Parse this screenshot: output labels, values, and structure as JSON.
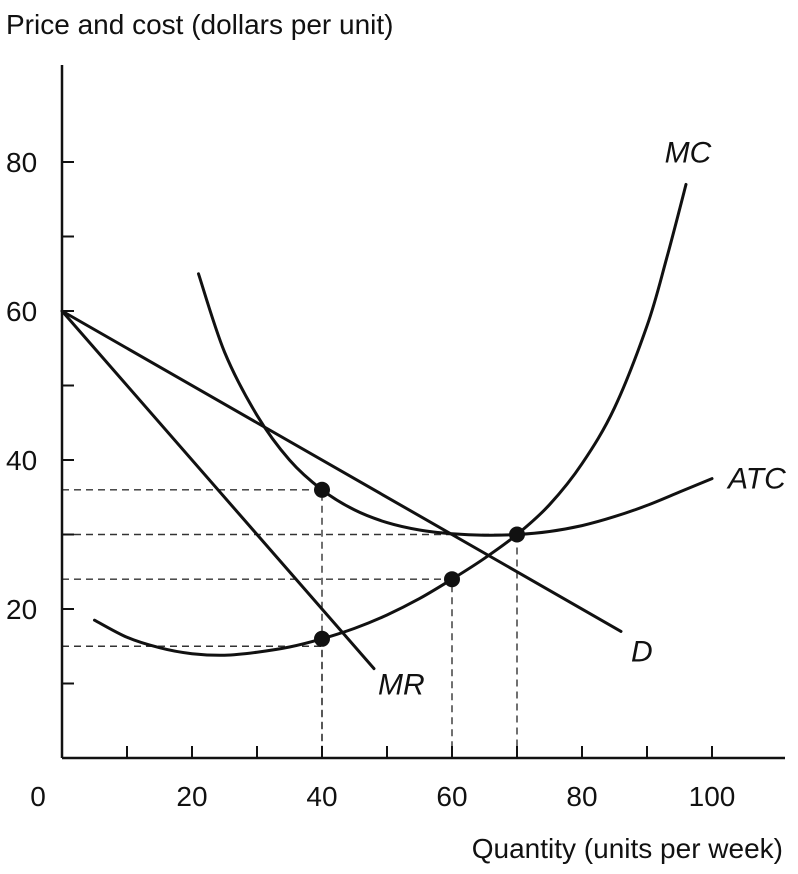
{
  "chart_data": {
    "type": "line",
    "ylabel": "Price and cost (dollars per unit)",
    "xlabel": "Quantity (units per week)",
    "xlim": [
      0,
      110
    ],
    "ylim": [
      0,
      93
    ],
    "origin_label": "0",
    "x_ticks": [
      10,
      20,
      30,
      40,
      50,
      60,
      70,
      80,
      90,
      100
    ],
    "x_tick_labels": [
      {
        "value": 20,
        "label": "20"
      },
      {
        "value": 40,
        "label": "40"
      },
      {
        "value": 60,
        "label": "60"
      },
      {
        "value": 80,
        "label": "80"
      },
      {
        "value": 100,
        "label": "100"
      }
    ],
    "y_ticks": [
      10,
      20,
      30,
      40,
      50,
      60,
      70,
      80
    ],
    "y_tick_labels": [
      {
        "value": 20,
        "label": "20"
      },
      {
        "value": 40,
        "label": "40"
      },
      {
        "value": 60,
        "label": "60"
      },
      {
        "value": 80,
        "label": "80"
      }
    ],
    "series": [
      {
        "name": "D",
        "x": [
          0,
          86
        ],
        "y": [
          60,
          17
        ]
      },
      {
        "name": "MR",
        "x": [
          0,
          48
        ],
        "y": [
          60,
          12
        ]
      },
      {
        "name": "ATC",
        "x": [
          21,
          25,
          30,
          35,
          40,
          45,
          50,
          55,
          60,
          65,
          70,
          75,
          80,
          85,
          90,
          95,
          100
        ],
        "y": [
          65,
          54.5,
          46,
          40,
          36,
          33.3,
          31.6,
          30.6,
          30.1,
          29.9,
          30,
          30.4,
          31.2,
          32.4,
          33.9,
          35.7,
          37.5
        ]
      },
      {
        "name": "MC",
        "x": [
          5,
          10,
          15,
          20,
          25,
          30,
          35,
          40,
          45,
          50,
          55,
          60,
          65,
          70,
          75,
          80,
          85,
          90,
          93,
          96
        ],
        "y": [
          18.5,
          16.2,
          14.8,
          14,
          13.8,
          14.2,
          14.9,
          16,
          17.4,
          19.2,
          21.4,
          24,
          26.8,
          30,
          34,
          39.5,
          47,
          58,
          67,
          77
        ]
      }
    ],
    "points": [
      {
        "x": 40,
        "y": 36
      },
      {
        "x": 40,
        "y": 16
      },
      {
        "x": 60,
        "y": 24
      },
      {
        "x": 70,
        "y": 30
      }
    ],
    "guides": [
      {
        "x": 40,
        "y": 36
      },
      {
        "x": 40,
        "y": 15
      },
      {
        "x": 60,
        "y": 24
      },
      {
        "x": 70,
        "y": 30
      }
    ],
    "grid": false
  }
}
